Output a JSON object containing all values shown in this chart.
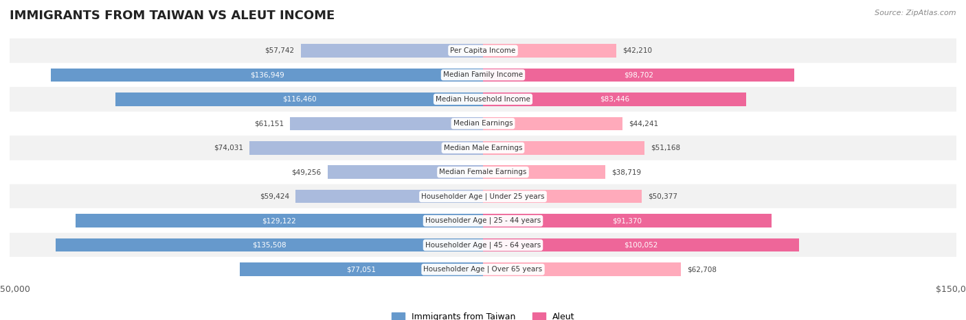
{
  "title": "IMMIGRANTS FROM TAIWAN VS ALEUT INCOME",
  "source": "Source: ZipAtlas.com",
  "categories": [
    "Per Capita Income",
    "Median Family Income",
    "Median Household Income",
    "Median Earnings",
    "Median Male Earnings",
    "Median Female Earnings",
    "Householder Age | Under 25 years",
    "Householder Age | 25 - 44 years",
    "Householder Age | 45 - 64 years",
    "Householder Age | Over 65 years"
  ],
  "taiwan_values": [
    57742,
    136949,
    116460,
    61151,
    74031,
    49256,
    59424,
    129122,
    135508,
    77051
  ],
  "aleut_values": [
    42210,
    98702,
    83446,
    44241,
    51168,
    38719,
    50377,
    91370,
    100052,
    62708
  ],
  "taiwan_color_dark": "#6699cc",
  "taiwan_color_light": "#aabbdd",
  "aleut_color_dark": "#ee6699",
  "aleut_color_light": "#ffaabb",
  "row_bg_color": "#f2f2f2",
  "row_bg_color2": "#ffffff",
  "label_bg_color": "#ffffff",
  "max_value": 150000,
  "bar_height": 0.55,
  "legend_taiwan": "Immigrants from Taiwan",
  "legend_aleut": "Aleut"
}
